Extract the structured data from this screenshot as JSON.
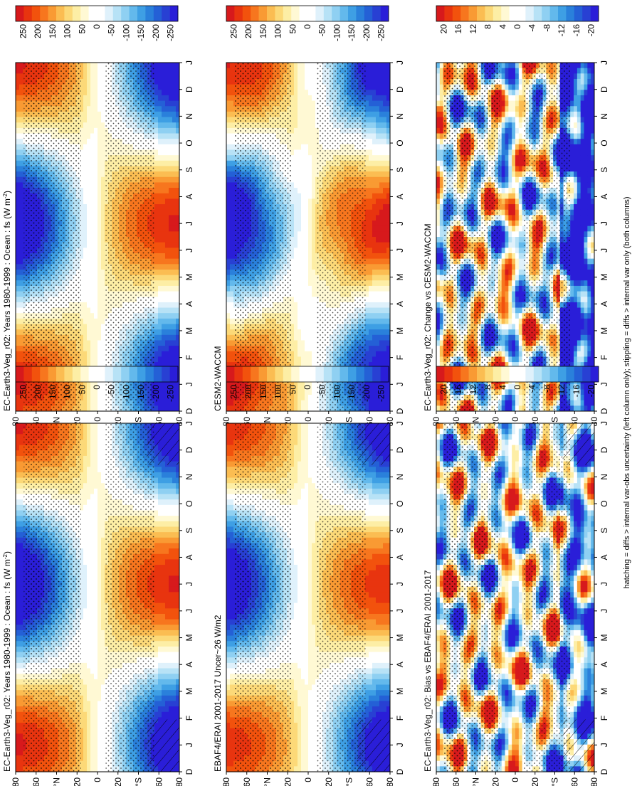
{
  "footnote": "hatching = diffs > internal var-obs uncertainty (left column only); stippling = diffs > internal var only (both columns)",
  "axes": {
    "months": [
      "D",
      "J",
      "F",
      "M",
      "A",
      "M",
      "J",
      "J",
      "A",
      "S",
      "O",
      "N",
      "D",
      "J"
    ],
    "lat_labels": [
      "80",
      "60",
      "°N",
      "20",
      "0",
      "20",
      "°S",
      "60",
      "80"
    ],
    "lat_values": [
      80,
      60,
      40,
      20,
      0,
      -20,
      -40,
      -60,
      -80
    ]
  },
  "colorbars": {
    "flux": {
      "labels": [
        "250",
        "200",
        "150",
        "100",
        "50",
        "0",
        "-50",
        "-100",
        "-150",
        "-200",
        "-250"
      ],
      "colors": [
        "#d7191c",
        "#e8340f",
        "#f2520d",
        "#f7761e",
        "#f99a33",
        "#fbbd52",
        "#fcd978",
        "#fdeea5",
        "#fff9d4",
        "#ffffff",
        "#ffffff",
        "#dff1fb",
        "#b7e2f6",
        "#8fd0f2",
        "#63b9ec",
        "#3e9fe4",
        "#2a80db",
        "#2460d6",
        "#2840d3",
        "#2a1ed8"
      ]
    },
    "diff": {
      "labels": [
        "20",
        "16",
        "12",
        "8",
        "4",
        "0",
        "-4",
        "-8",
        "-12",
        "-16",
        "-20"
      ],
      "colors": [
        "#d7191c",
        "#e8340f",
        "#f2520d",
        "#f7761e",
        "#f99a33",
        "#fbbd52",
        "#fcd978",
        "#fdeea5",
        "#fff9d4",
        "#ffffff",
        "#ffffff",
        "#dff1fb",
        "#b7e2f6",
        "#8fd0f2",
        "#63b9ec",
        "#3e9fe4",
        "#2a80db",
        "#2460d6",
        "#2840d3",
        "#2a1ed8"
      ]
    }
  },
  "chart_data": [
    {
      "type": "heatmap",
      "title": "EC-Earth3-Veg_r02: Years 1980-1999 : Ocean : fs (W m<sup>-2</sup>)",
      "title_main": "EC-Earth3-Veg_r02: Years 1980-1999 : Ocean : fs (W m",
      "title_sup": "-2",
      "title_end": ")",
      "x": "months D..J",
      "y": "latitude 80N..80S",
      "range": [
        -250,
        250
      ],
      "colorbar": "flux",
      "field": "model",
      "stipple": true,
      "hatch": true
    },
    {
      "type": "heatmap",
      "title": "EBAF4/ERAI 2001-2017 Uncer~26 W/m2",
      "x": "months D..J",
      "y": "latitude 80N..80S",
      "range": [
        -250,
        250
      ],
      "colorbar": "flux",
      "field": "obs",
      "stipple": true,
      "hatch": true
    },
    {
      "type": "heatmap",
      "title": "EC-Earth3-Veg_r02: Bias vs EBAF4/ERAI 2001-2017",
      "x": "months D..J",
      "y": "latitude 80N..80S",
      "range": [
        -20,
        20
      ],
      "colorbar": "diff",
      "field": "bias",
      "stipple": true,
      "hatch": true
    },
    {
      "type": "heatmap",
      "title": "EC-Earth3-Veg_r02: Years 1980-1999 : Ocean : fs (W m-2)",
      "title_main": "EC-Earth3-Veg_r02: Years 1980-1999 : Ocean : fs (W m",
      "title_sup": "-2",
      "title_end": ")",
      "x": "months D..J",
      "y": "latitude 80N..80S",
      "range": [
        -250,
        250
      ],
      "colorbar": "flux",
      "field": "model",
      "stipple": true,
      "hatch": false
    },
    {
      "type": "heatmap",
      "title": "CESM2-WACCM",
      "x": "months D..J",
      "y": "latitude 80N..80S",
      "range": [
        -250,
        250
      ],
      "colorbar": "flux",
      "field": "model2",
      "stipple": true,
      "hatch": false
    },
    {
      "type": "heatmap",
      "title": "EC-Earth3-Veg_r02: Change vs CESM2-WACCM",
      "x": "months D..J",
      "y": "latitude 80N..80S",
      "range": [
        -20,
        20
      ],
      "colorbar": "diff",
      "field": "change",
      "stipple": true,
      "hatch": false
    }
  ]
}
